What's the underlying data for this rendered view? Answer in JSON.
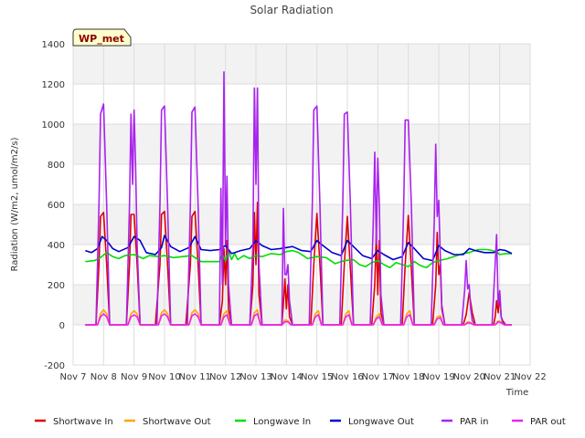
{
  "chart_data": {
    "type": "line",
    "title": "Solar Radiation",
    "xlabel": "Time",
    "ylabel": "Radiation (W/m2, umol/m2/s)",
    "ylim": [
      -200,
      1400
    ],
    "xlim": [
      7,
      22
    ],
    "yticks": [
      -200,
      0,
      200,
      400,
      600,
      800,
      1000,
      1200,
      1400
    ],
    "xticks": [
      {
        "v": 7,
        "label": "Nov 7"
      },
      {
        "v": 8,
        "label": "Nov 8"
      },
      {
        "v": 9,
        "label": "Nov 9"
      },
      {
        "v": 10,
        "label": "Nov 10"
      },
      {
        "v": 11,
        "label": "Nov 11"
      },
      {
        "v": 12,
        "label": "Nov 12"
      },
      {
        "v": 13,
        "label": "Nov 13"
      },
      {
        "v": 14,
        "label": "Nov 14"
      },
      {
        "v": 15,
        "label": "Nov 15"
      },
      {
        "v": 16,
        "label": "Nov 16"
      },
      {
        "v": 17,
        "label": "Nov 17"
      },
      {
        "v": 18,
        "label": "Nov 18"
      },
      {
        "v": 19,
        "label": "Nov 19"
      },
      {
        "v": 20,
        "label": "Nov 20"
      },
      {
        "v": 21,
        "label": "Nov 21"
      },
      {
        "v": 22,
        "label": "Nov 22"
      }
    ],
    "grid": true,
    "legend_position": "bottom",
    "site_label": "WP_met",
    "series": [
      {
        "name": "Shortwave In",
        "color": "#dd0000",
        "x": [
          7.4,
          7.75,
          7.85,
          7.9,
          8.0,
          8.1,
          8.2,
          8.4,
          8.75,
          8.85,
          8.9,
          9.0,
          9.1,
          9.2,
          9.4,
          9.7,
          9.85,
          9.9,
          10.0,
          10.1,
          10.2,
          10.4,
          10.7,
          10.85,
          10.9,
          11.0,
          11.1,
          11.2,
          11.4,
          11.8,
          11.9,
          11.95,
          12.0,
          12.05,
          12.1,
          12.2,
          12.4,
          12.8,
          12.9,
          12.95,
          13.0,
          13.05,
          13.1,
          13.2,
          13.4,
          13.85,
          13.9,
          13.95,
          14.0,
          14.05,
          14.1,
          14.2,
          14.4,
          14.8,
          14.9,
          15.0,
          15.1,
          15.2,
          15.4,
          15.8,
          15.9,
          16.0,
          16.1,
          16.2,
          16.4,
          16.8,
          16.9,
          16.95,
          17.0,
          17.05,
          17.1,
          17.2,
          17.4,
          17.8,
          17.9,
          18.0,
          18.1,
          18.2,
          18.4,
          18.8,
          18.9,
          18.95,
          19.0,
          19.05,
          19.1,
          19.2,
          19.4,
          19.8,
          19.9,
          20.0,
          20.1,
          20.2,
          20.4,
          20.8,
          20.85,
          20.9,
          20.95,
          21.0,
          21.05,
          21.1,
          21.2,
          21.4
        ],
        "y": [
          0,
          0,
          300,
          540,
          560,
          300,
          0,
          0,
          0,
          300,
          550,
          550,
          300,
          0,
          0,
          0,
          300,
          550,
          565,
          300,
          0,
          0,
          0,
          300,
          540,
          565,
          300,
          0,
          0,
          0,
          120,
          380,
          200,
          420,
          80,
          0,
          0,
          0,
          200,
          560,
          300,
          610,
          150,
          0,
          0,
          0,
          100,
          230,
          80,
          200,
          40,
          0,
          0,
          0,
          300,
          555,
          300,
          0,
          0,
          0,
          300,
          540,
          280,
          0,
          0,
          0,
          200,
          460,
          150,
          420,
          60,
          0,
          0,
          0,
          300,
          545,
          280,
          0,
          0,
          0,
          200,
          460,
          250,
          300,
          80,
          0,
          0,
          0,
          50,
          160,
          60,
          0,
          0,
          0,
          40,
          120,
          60,
          150,
          40,
          20,
          0,
          0
        ]
      },
      {
        "name": "Shortwave Out",
        "color": "#ffa500",
        "x": [
          7.4,
          7.8,
          7.9,
          8.0,
          8.1,
          8.2,
          8.8,
          8.9,
          9.0,
          9.1,
          9.2,
          9.8,
          9.9,
          10.0,
          10.1,
          10.2,
          10.8,
          10.9,
          11.0,
          11.1,
          11.2,
          11.85,
          11.95,
          12.05,
          12.15,
          12.85,
          12.95,
          13.05,
          13.15,
          13.85,
          13.95,
          14.05,
          14.15,
          14.85,
          14.95,
          15.05,
          15.15,
          15.85,
          15.95,
          16.05,
          16.15,
          16.85,
          16.95,
          17.05,
          17.15,
          17.85,
          17.95,
          18.05,
          18.15,
          18.85,
          18.95,
          19.05,
          19.15,
          19.85,
          19.95,
          20.05,
          20.15,
          20.85,
          20.95,
          21.05,
          21.15,
          21.4
        ],
        "y": [
          0,
          0,
          55,
          75,
          55,
          0,
          0,
          55,
          70,
          55,
          0,
          0,
          60,
          75,
          55,
          0,
          0,
          60,
          75,
          55,
          0,
          0,
          55,
          70,
          0,
          0,
          60,
          75,
          0,
          0,
          25,
          20,
          0,
          0,
          55,
          70,
          0,
          0,
          55,
          70,
          0,
          0,
          40,
          55,
          0,
          0,
          55,
          70,
          0,
          0,
          40,
          45,
          0,
          0,
          15,
          12,
          0,
          0,
          20,
          15,
          0,
          0
        ]
      },
      {
        "name": "Longwave In",
        "color": "#00dd00",
        "x": [
          7.4,
          7.7,
          7.9,
          8.1,
          8.3,
          8.5,
          8.7,
          9.0,
          9.3,
          9.5,
          9.8,
          10.0,
          10.3,
          10.6,
          10.9,
          11.2,
          11.5,
          11.8,
          11.9,
          12.0,
          12.1,
          12.2,
          12.3,
          12.4,
          12.6,
          12.8,
          13.0,
          13.2,
          13.5,
          13.8,
          14.0,
          14.2,
          14.4,
          14.7,
          15.0,
          15.3,
          15.6,
          15.9,
          16.2,
          16.4,
          16.6,
          16.8,
          17.0,
          17.2,
          17.4,
          17.6,
          17.8,
          18.0,
          18.2,
          18.4,
          18.6,
          18.8,
          19.0,
          19.3,
          19.6,
          19.8,
          20.0,
          20.3,
          20.6,
          20.9,
          21.0,
          21.2,
          21.4
        ],
        "y": [
          315,
          320,
          335,
          360,
          340,
          330,
          345,
          350,
          330,
          345,
          340,
          345,
          335,
          340,
          345,
          315,
          315,
          315,
          350,
          320,
          370,
          325,
          355,
          325,
          345,
          330,
          345,
          340,
          355,
          350,
          365,
          370,
          360,
          330,
          340,
          335,
          305,
          320,
          325,
          300,
          290,
          310,
          320,
          300,
          285,
          310,
          300,
          290,
          315,
          295,
          285,
          310,
          320,
          330,
          345,
          355,
          360,
          375,
          375,
          365,
          350,
          355,
          355
        ]
      },
      {
        "name": "Longwave Out",
        "color": "#0000cc",
        "x": [
          7.4,
          7.6,
          7.8,
          7.95,
          8.1,
          8.3,
          8.5,
          8.8,
          9.0,
          9.2,
          9.4,
          9.7,
          9.9,
          10.0,
          10.2,
          10.5,
          10.8,
          11.0,
          11.2,
          11.5,
          11.8,
          12.0,
          12.2,
          12.5,
          12.8,
          13.0,
          13.2,
          13.5,
          13.8,
          14.0,
          14.2,
          14.5,
          14.8,
          15.0,
          15.2,
          15.5,
          15.8,
          16.0,
          16.2,
          16.5,
          16.8,
          17.0,
          17.2,
          17.5,
          17.8,
          18.0,
          18.2,
          18.5,
          18.8,
          19.0,
          19.2,
          19.5,
          19.8,
          20.0,
          20.2,
          20.5,
          20.8,
          21.0,
          21.2,
          21.4
        ],
        "y": [
          370,
          360,
          380,
          440,
          420,
          380,
          365,
          385,
          440,
          420,
          360,
          350,
          385,
          445,
          390,
          365,
          385,
          440,
          375,
          370,
          375,
          395,
          355,
          370,
          380,
          420,
          395,
          375,
          380,
          385,
          390,
          370,
          365,
          420,
          395,
          360,
          345,
          420,
          390,
          345,
          330,
          370,
          350,
          325,
          340,
          410,
          380,
          330,
          320,
          395,
          370,
          350,
          350,
          380,
          370,
          360,
          360,
          375,
          370,
          355
        ]
      },
      {
        "name": "PAR in",
        "color": "#aa22ee",
        "x": [
          7.4,
          7.75,
          7.85,
          7.9,
          8.0,
          8.1,
          8.2,
          8.4,
          8.75,
          8.85,
          8.9,
          8.95,
          9.0,
          9.05,
          9.1,
          9.2,
          9.4,
          9.75,
          9.85,
          9.9,
          10.0,
          10.1,
          10.2,
          10.4,
          10.75,
          10.85,
          10.9,
          11.0,
          11.1,
          11.2,
          11.4,
          11.8,
          11.85,
          11.9,
          11.95,
          12.0,
          12.05,
          12.1,
          12.2,
          12.4,
          12.8,
          12.9,
          12.95,
          13.0,
          13.05,
          13.1,
          13.2,
          13.4,
          13.85,
          13.9,
          13.95,
          14.0,
          14.05,
          14.1,
          14.2,
          14.4,
          14.75,
          14.85,
          14.9,
          15.0,
          15.1,
          15.2,
          15.4,
          15.75,
          15.85,
          15.9,
          16.0,
          16.1,
          16.2,
          16.4,
          16.75,
          16.85,
          16.9,
          16.95,
          17.0,
          17.05,
          17.1,
          17.2,
          17.4,
          17.75,
          17.85,
          17.9,
          18.0,
          18.1,
          18.2,
          18.4,
          18.75,
          18.85,
          18.9,
          18.95,
          19.0,
          19.05,
          19.1,
          19.2,
          19.4,
          19.75,
          19.85,
          19.9,
          19.95,
          20.0,
          20.05,
          20.1,
          20.2,
          20.4,
          20.75,
          20.85,
          20.9,
          20.95,
          21.0,
          21.05,
          21.1,
          21.2,
          21.4
        ],
        "y": [
          0,
          0,
          600,
          1050,
          1100,
          600,
          0,
          0,
          0,
          600,
          1050,
          700,
          1070,
          800,
          400,
          0,
          0,
          0,
          600,
          1070,
          1090,
          600,
          0,
          0,
          0,
          600,
          1060,
          1085,
          600,
          0,
          0,
          0,
          680,
          200,
          1260,
          400,
          740,
          200,
          0,
          0,
          0,
          400,
          1180,
          700,
          1180,
          300,
          0,
          0,
          0,
          580,
          250,
          250,
          300,
          120,
          0,
          0,
          0,
          600,
          1070,
          1090,
          600,
          0,
          0,
          0,
          600,
          1050,
          1060,
          600,
          0,
          0,
          0,
          500,
          860,
          400,
          830,
          600,
          150,
          0,
          0,
          0,
          600,
          1020,
          1020,
          600,
          0,
          0,
          0,
          500,
          900,
          540,
          620,
          350,
          100,
          0,
          0,
          0,
          170,
          320,
          180,
          200,
          80,
          20,
          0,
          0,
          0,
          300,
          450,
          100,
          170,
          40,
          10,
          0,
          0
        ]
      },
      {
        "name": "PAR out",
        "color": "#ee22ee",
        "x": [
          7.4,
          7.8,
          7.9,
          8.0,
          8.1,
          8.2,
          8.8,
          8.9,
          9.0,
          9.1,
          9.2,
          9.8,
          9.9,
          10.0,
          10.1,
          10.2,
          10.8,
          10.9,
          11.0,
          11.1,
          11.2,
          11.85,
          11.95,
          12.05,
          12.15,
          12.85,
          12.95,
          13.05,
          13.15,
          13.85,
          13.95,
          14.05,
          14.15,
          14.85,
          14.95,
          15.05,
          15.15,
          15.85,
          15.95,
          16.05,
          16.15,
          16.85,
          16.95,
          17.05,
          17.15,
          17.85,
          17.95,
          18.05,
          18.15,
          18.85,
          18.95,
          19.05,
          19.15,
          19.85,
          19.95,
          20.05,
          20.15,
          20.85,
          20.95,
          21.05,
          21.15,
          21.4
        ],
        "y": [
          0,
          0,
          40,
          55,
          40,
          0,
          0,
          40,
          50,
          40,
          0,
          0,
          45,
          55,
          40,
          0,
          0,
          45,
          55,
          40,
          0,
          0,
          40,
          50,
          0,
          0,
          45,
          55,
          0,
          0,
          15,
          15,
          0,
          0,
          40,
          50,
          0,
          0,
          40,
          50,
          0,
          0,
          30,
          40,
          0,
          0,
          40,
          50,
          0,
          0,
          30,
          35,
          0,
          0,
          10,
          8,
          0,
          0,
          15,
          10,
          0,
          0
        ]
      }
    ]
  }
}
